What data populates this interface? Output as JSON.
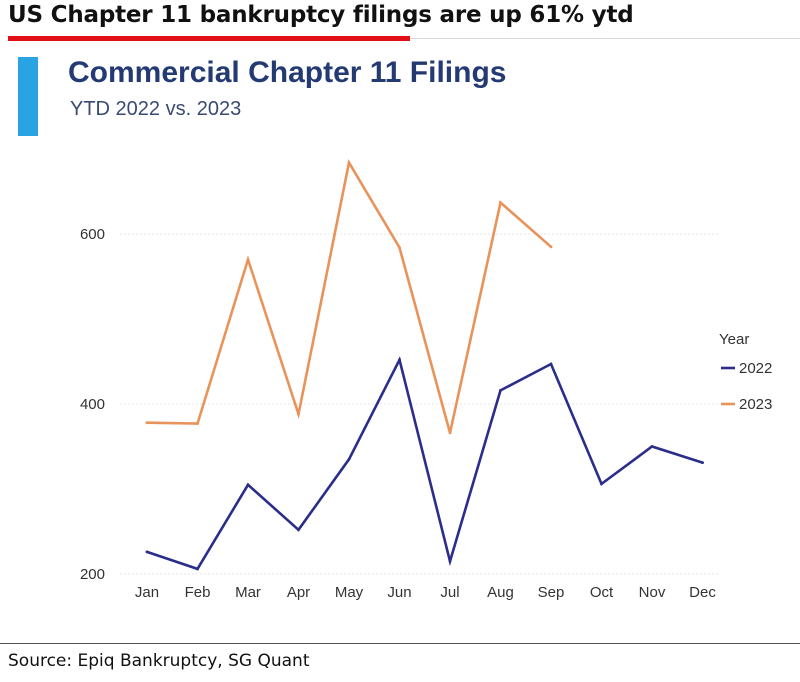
{
  "headline": "US Chapter 11 bankruptcy filings are up 61% ytd",
  "source": "Source: Epiq Bankruptcy, SG Quant",
  "colors": {
    "headline_rule": "#e10f16",
    "accent": "#2aa3e3",
    "title": "#243a73",
    "series_2022": "#2b2d8a",
    "series_2023": "#e8935a",
    "grid": "#e6e6e6"
  },
  "chart_data": {
    "type": "line",
    "title": "Commercial Chapter 11 Filings",
    "subtitle": "YTD 2022 vs. 2023",
    "categories": [
      "Jan",
      "Feb",
      "Mar",
      "Apr",
      "May",
      "Jun",
      "Jul",
      "Aug",
      "Sep",
      "Oct",
      "Nov",
      "Dec"
    ],
    "series": [
      {
        "name": "2022",
        "values": [
          226,
          206,
          305,
          252,
          335,
          452,
          215,
          416,
          447,
          306,
          350,
          331
        ]
      },
      {
        "name": "2023",
        "values": [
          378,
          377,
          570,
          388,
          684,
          584,
          366,
          637,
          585,
          null,
          null,
          null
        ]
      }
    ],
    "yticks": [
      200,
      400,
      600
    ],
    "ylim": [
      200,
      700
    ],
    "grid": true,
    "legend_title": "Year",
    "legend_position": "right",
    "xlabel": "",
    "ylabel": ""
  }
}
